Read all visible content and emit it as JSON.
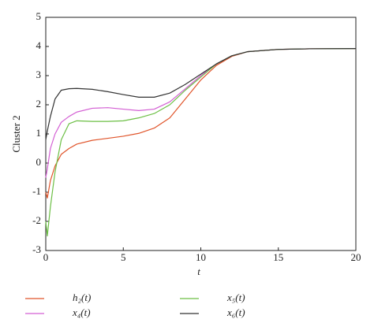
{
  "chart_data": {
    "type": "line",
    "ylabel": "Cluster 2",
    "xlabel": "t",
    "x": [
      0,
      0.1,
      0.3,
      0.6,
      1,
      1.5,
      2,
      3,
      4,
      5,
      6,
      7,
      8,
      9,
      10,
      11,
      12,
      13,
      15,
      17,
      20
    ],
    "series": [
      {
        "name": "h₂(t)",
        "color": "#e0542a",
        "values": [
          -1.0,
          -1.2,
          -0.6,
          -0.1,
          0.3,
          0.5,
          0.65,
          0.78,
          0.85,
          0.92,
          1.02,
          1.2,
          1.55,
          2.2,
          2.85,
          3.35,
          3.66,
          3.82,
          3.9,
          3.92,
          3.93
        ]
      },
      {
        "name": "x₄(t)",
        "color": "#d35fd3",
        "values": [
          -0.5,
          -0.2,
          0.5,
          1.0,
          1.4,
          1.6,
          1.75,
          1.88,
          1.9,
          1.85,
          1.8,
          1.85,
          2.1,
          2.55,
          3.0,
          3.4,
          3.68,
          3.82,
          3.9,
          3.92,
          3.93
        ]
      },
      {
        "name": "x₅(t)",
        "color": "#6cbf45",
        "values": [
          -2.0,
          -2.5,
          -1.5,
          -0.3,
          0.8,
          1.35,
          1.45,
          1.43,
          1.43,
          1.45,
          1.55,
          1.7,
          2.0,
          2.5,
          2.95,
          3.4,
          3.68,
          3.82,
          3.9,
          3.92,
          3.93
        ]
      },
      {
        "name": "x₆(t)",
        "color": "#333333",
        "values": [
          0.8,
          1.1,
          1.6,
          2.2,
          2.5,
          2.55,
          2.56,
          2.53,
          2.45,
          2.35,
          2.26,
          2.26,
          2.4,
          2.7,
          3.05,
          3.4,
          3.68,
          3.82,
          3.9,
          3.92,
          3.93
        ]
      }
    ],
    "xlim": [
      0,
      20
    ],
    "xticks": [
      0,
      5,
      10,
      15,
      20
    ],
    "ylim": [
      -3,
      5
    ],
    "yticks": [
      -3,
      -2,
      -1,
      0,
      1,
      2,
      3,
      4,
      5
    ],
    "grid": false,
    "legend": "below"
  }
}
